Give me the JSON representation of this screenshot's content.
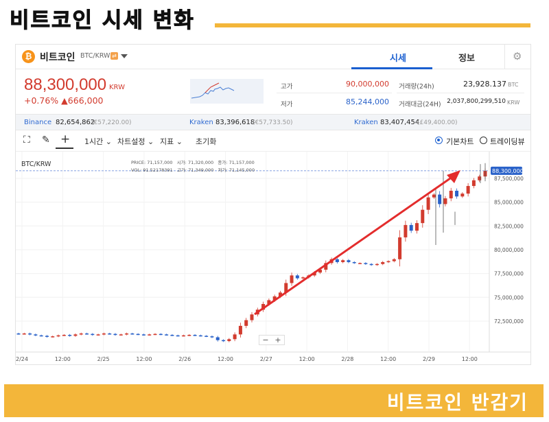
{
  "heading": {
    "title": "비트코인 시세 변화",
    "banner_text": "비트코인 반감기"
  },
  "colors": {
    "accent": "#f3b63a",
    "up": "#d23b2e",
    "down": "#2a62c9",
    "tab_active": "#1a5fd0"
  },
  "header": {
    "coin_icon": "bitcoin-icon",
    "coin_icon_glyph": "₿",
    "coin_name": "비트코인",
    "pair": "BTC/KRW",
    "tabs": [
      {
        "label": "시세",
        "active": true
      },
      {
        "label": "정보",
        "active": false
      }
    ],
    "settings_icon": "gear-icon"
  },
  "price": {
    "current": "88,300,000",
    "unit": "KRW",
    "change_pct": "+0.76%",
    "change_arrow": "▲",
    "change_amt": "666,000"
  },
  "stats": {
    "high_label": "고가",
    "high": "90,000,000",
    "low_label": "저가",
    "low": "85,244,000",
    "volume_label": "거래량(24h)",
    "volume": "23,928.137",
    "volume_unit": "BTC",
    "amount_label": "거래대금(24H)",
    "amount": "2,037,800,299,510",
    "amount_unit": "KRW"
  },
  "exchanges": [
    {
      "name": "Binance",
      "price": "82,654,862",
      "sub": "(€57,220.00)"
    },
    {
      "name": "Kraken",
      "price": "83,396,618",
      "sub": "(€57,733.50)"
    },
    {
      "name": "Kraken",
      "price": "83,407,454",
      "sub": "(£49,400.00)"
    }
  ],
  "toolbar": {
    "fullscreen_icon": "fullscreen-icon",
    "draw_icon": "pencil-icon",
    "crosshair_icon": "crosshair-icon",
    "interval": "1시간",
    "chart_settings": "차트설정",
    "indicators": "지표",
    "reset": "초기화",
    "view_basic": "기본차트",
    "view_tradingview": "트레이딩뷰"
  },
  "chart_info": {
    "symbol": "BTC/KRW",
    "price_label": "PRICE:",
    "price": "71,157,000",
    "open_label": "시가:",
    "open": "71,320,000",
    "close_label": "종가:",
    "close": "71,157,000",
    "vol_label": "VOL:",
    "vol": "91.52178391",
    "high_label": "고가:",
    "high": "71,349,000",
    "low_label": "저가:",
    "low": "71,145,000",
    "last_price_tag": "88,300,000",
    "zoom_out": "−",
    "zoom_in": "+"
  },
  "chart_data": {
    "type": "candlestick",
    "x_ticks": [
      "2/24",
      "12:00",
      "2/25",
      "12:00",
      "2/26",
      "12:00",
      "2/27",
      "12:00",
      "2/28",
      "12:00",
      "2/29",
      "12:00"
    ],
    "y_ticks": [
      "87,500,000",
      "85,000,000",
      "82,500,000",
      "80,000,000",
      "77,500,000",
      "75,000,000",
      "72,500,000"
    ],
    "y_tick_values": [
      87500000,
      85000000,
      82500000,
      80000000,
      77500000,
      75000000,
      72500000
    ],
    "ylim": [
      69900000,
      89300000
    ],
    "last_price": 88300000,
    "close_path": [
      71150000,
      71200000,
      71100000,
      71000000,
      70950000,
      70850000,
      70900000,
      71000000,
      71050000,
      70950000,
      71100000,
      71200000,
      71150000,
      71050000,
      71100000,
      71200000,
      71150000,
      71050000,
      71100000,
      71200000,
      71150000,
      71100000,
      71050000,
      71100000,
      71150000,
      71100000,
      71050000,
      71000000,
      70950000,
      71000000,
      71050000,
      71000000,
      70950000,
      70900000,
      70800000,
      70500000,
      70400000,
      70600000,
      71100000,
      72000000,
      72600000,
      73200000,
      73700000,
      74300000,
      74700000,
      75100000,
      75500000,
      76500000,
      77300000,
      77000000,
      77100000,
      77300000,
      77600000,
      77900000,
      78600000,
      79000000,
      78700000,
      78900000,
      78700000,
      78600000,
      78600000,
      78500000,
      78400000,
      78500000,
      78700000,
      78800000,
      79000000,
      81300000,
      82600000,
      82000000,
      82800000,
      84200000,
      85500000,
      85800000,
      84800000,
      85400000,
      86200000,
      85600000,
      85900000,
      86700000,
      87300000,
      87700000,
      88300000
    ],
    "annotation": "red trend arrow pointing up-right from 2/27 to 2/29"
  }
}
